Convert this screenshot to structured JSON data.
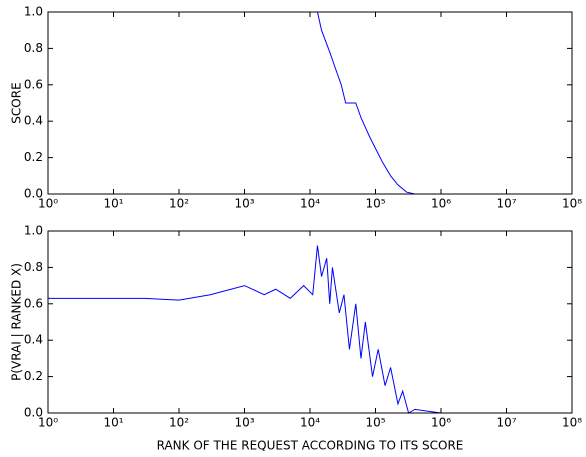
{
  "chart_data": [
    {
      "type": "line",
      "log_x": true,
      "ylabel": "SCORE",
      "x": [
        1,
        13000,
        15000,
        20000,
        25000,
        30000,
        35000,
        50000,
        60000,
        80000,
        100000,
        130000,
        170000,
        220000,
        300000,
        400000,
        1000000,
        30000000
      ],
      "series": [
        {
          "color": "#0000ff",
          "values": [
            1.0,
            1.0,
            0.9,
            0.78,
            0.68,
            0.6,
            0.5,
            0.5,
            0.42,
            0.32,
            0.25,
            0.17,
            0.1,
            0.05,
            0.01,
            0,
            0,
            0
          ]
        }
      ],
      "xlim": [
        1,
        100000000
      ],
      "xticks": [
        {
          "value": 1,
          "label": "10⁰"
        },
        {
          "value": 10,
          "label": "10¹"
        },
        {
          "value": 100,
          "label": "10²"
        },
        {
          "value": 1000,
          "label": "10³"
        },
        {
          "value": 10000,
          "label": "10⁴"
        },
        {
          "value": 100000,
          "label": "10⁵"
        },
        {
          "value": 1000000,
          "label": "10⁶"
        },
        {
          "value": 10000000,
          "label": "10⁷"
        },
        {
          "value": 100000000,
          "label": "10⁸"
        }
      ],
      "ylim": [
        0,
        1
      ],
      "yticks": [
        {
          "value": 0,
          "label": "0.0"
        },
        {
          "value": 0.2,
          "label": "0.2"
        },
        {
          "value": 0.4,
          "label": "0.4"
        },
        {
          "value": 0.6,
          "label": "0.6"
        },
        {
          "value": 0.8,
          "label": "0.8"
        },
        {
          "value": 1,
          "label": "1.0"
        }
      ]
    },
    {
      "type": "line",
      "log_x": true,
      "ylabel": "P(VRAI | RANKED X)",
      "xlabel": "RANK OF THE REQUEST ACCORDING TO ITS SCORE",
      "x": [
        1,
        30,
        100,
        300,
        1000,
        2000,
        3000,
        5000,
        8000,
        11000,
        13000,
        15000,
        18000,
        20000,
        22000,
        28000,
        33000,
        40000,
        50000,
        60000,
        70000,
        90000,
        110000,
        140000,
        170000,
        220000,
        260000,
        320000,
        400000,
        1000000,
        30000000
      ],
      "series": [
        {
          "color": "#0000ff",
          "values": [
            0.63,
            0.63,
            0.62,
            0.65,
            0.7,
            0.65,
            0.68,
            0.63,
            0.7,
            0.65,
            0.92,
            0.75,
            0.85,
            0.6,
            0.8,
            0.55,
            0.65,
            0.35,
            0.6,
            0.3,
            0.5,
            0.2,
            0.35,
            0.15,
            0.25,
            0.05,
            0.12,
            0,
            0.02,
            0,
            0
          ]
        }
      ],
      "xlim": [
        1,
        100000000
      ],
      "xticks": [
        {
          "value": 1,
          "label": "10⁰"
        },
        {
          "value": 10,
          "label": "10¹"
        },
        {
          "value": 100,
          "label": "10²"
        },
        {
          "value": 1000,
          "label": "10³"
        },
        {
          "value": 10000,
          "label": "10⁴"
        },
        {
          "value": 100000,
          "label": "10⁵"
        },
        {
          "value": 1000000,
          "label": "10⁶"
        },
        {
          "value": 10000000,
          "label": "10⁷"
        },
        {
          "value": 100000000,
          "label": "10⁸"
        }
      ],
      "ylim": [
        0,
        1
      ],
      "yticks": [
        {
          "value": 0,
          "label": "0.0"
        },
        {
          "value": 0.2,
          "label": "0.2"
        },
        {
          "value": 0.4,
          "label": "0.4"
        },
        {
          "value": 0.6,
          "label": "0.6"
        },
        {
          "value": 0.8,
          "label": "0.8"
        },
        {
          "value": 1,
          "label": "1.0"
        }
      ]
    }
  ]
}
